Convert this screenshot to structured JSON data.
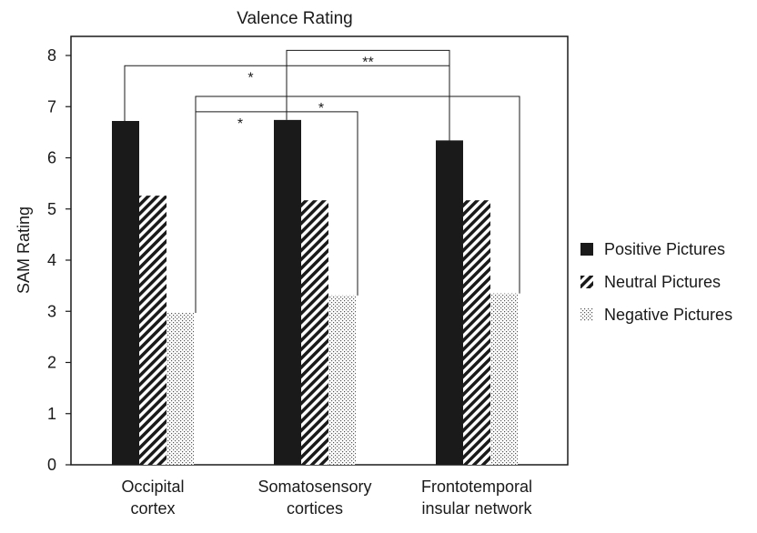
{
  "chart_data": {
    "type": "bar",
    "title": "Valence Rating",
    "xlabel": "",
    "ylabel": "SAM Rating",
    "ylim": [
      0,
      8
    ],
    "yticks": [
      "0",
      "1",
      "2",
      "3",
      "4",
      "5",
      "6",
      "7",
      "8"
    ],
    "categories": [
      [
        "Occipital",
        "cortex"
      ],
      [
        "Somatosensory",
        "cortices"
      ],
      [
        "Frontotemporal",
        "insular network"
      ]
    ],
    "series": [
      {
        "name": "Positive Pictures",
        "pattern": "solid",
        "color": "#1a1a1a",
        "values": [
          6.72,
          6.74,
          6.34
        ]
      },
      {
        "name": "Neutral Pictures",
        "pattern": "diagonal-hatch",
        "color": "#1a1a1a",
        "values": [
          5.26,
          5.17,
          5.17
        ]
      },
      {
        "name": "Negative Pictures",
        "pattern": "dots",
        "color": "#1a1a1a",
        "values": [
          2.97,
          3.31,
          3.35
        ]
      }
    ],
    "legend_position": "right",
    "significance": [
      {
        "label": "*",
        "from": {
          "category": 0,
          "series": 0
        },
        "to": {
          "category": 2,
          "series": 0
        },
        "height": 7.8
      },
      {
        "label": "**",
        "from": {
          "category": 1,
          "series": 0
        },
        "to": {
          "category": 2,
          "series": 0
        },
        "height": 8.1
      },
      {
        "label": "*",
        "from": {
          "category": 0,
          "series": 2
        },
        "to": {
          "category": 2,
          "series": 2
        },
        "height": 7.2
      },
      {
        "label": "*",
        "from": {
          "category": 0,
          "series": 2
        },
        "to": {
          "category": 1,
          "series": 2
        },
        "height": 6.9
      }
    ]
  }
}
